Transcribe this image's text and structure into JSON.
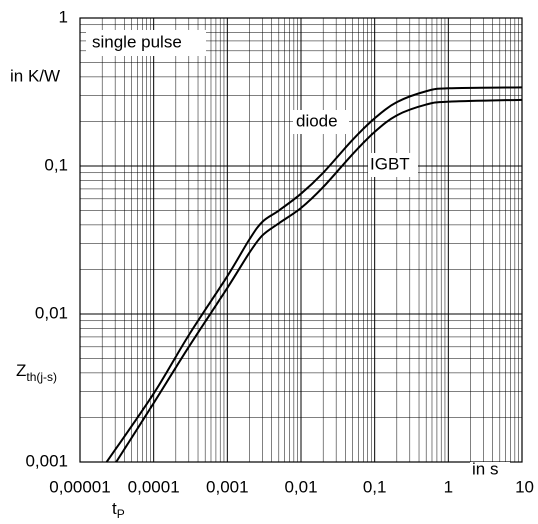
{
  "chart_data": {
    "type": "line",
    "annotation": "single pulse",
    "y_unit": "in K/W",
    "y_symbol": {
      "main": "Z",
      "sub": "th(j-s)"
    },
    "x_unit": "in s",
    "x_symbol": {
      "main": "t",
      "sub": "P"
    },
    "log_x": true,
    "log_y": true,
    "grid": true,
    "minor_grid": true,
    "xlim": [
      1e-05,
      10
    ],
    "ylim": [
      0.001,
      1
    ],
    "xticks": [
      {
        "value": 1e-05,
        "label": "0,00001"
      },
      {
        "value": 0.0001,
        "label": "0,0001"
      },
      {
        "value": 0.001,
        "label": "0,001"
      },
      {
        "value": 0.01,
        "label": "0,01"
      },
      {
        "value": 0.1,
        "label": "0,1"
      },
      1,
      10
    ],
    "yticks": [
      {
        "value": 0.001,
        "label": "0,001"
      },
      {
        "value": 0.01,
        "label": "0,01"
      },
      {
        "value": 0.1,
        "label": "0,1"
      },
      1
    ],
    "series": [
      {
        "name": "diode",
        "color": "#000000",
        "x": [
          2.3e-05,
          0.0001,
          0.0003,
          0.001,
          0.002,
          0.003,
          0.005,
          0.01,
          0.02,
          0.05,
          0.1,
          0.2,
          0.5,
          1,
          10
        ],
        "values": [
          0.001,
          0.0029,
          0.0072,
          0.018,
          0.032,
          0.042,
          0.05,
          0.065,
          0.09,
          0.15,
          0.21,
          0.27,
          0.32,
          0.335,
          0.34
        ]
      },
      {
        "name": "IGBT",
        "color": "#000000",
        "x": [
          3.1e-05,
          0.0001,
          0.0003,
          0.001,
          0.002,
          0.003,
          0.005,
          0.01,
          0.02,
          0.05,
          0.1,
          0.2,
          0.5,
          1,
          10
        ],
        "values": [
          0.001,
          0.0025,
          0.006,
          0.015,
          0.026,
          0.034,
          0.041,
          0.052,
          0.072,
          0.12,
          0.17,
          0.22,
          0.26,
          0.272,
          0.28
        ]
      }
    ]
  }
}
